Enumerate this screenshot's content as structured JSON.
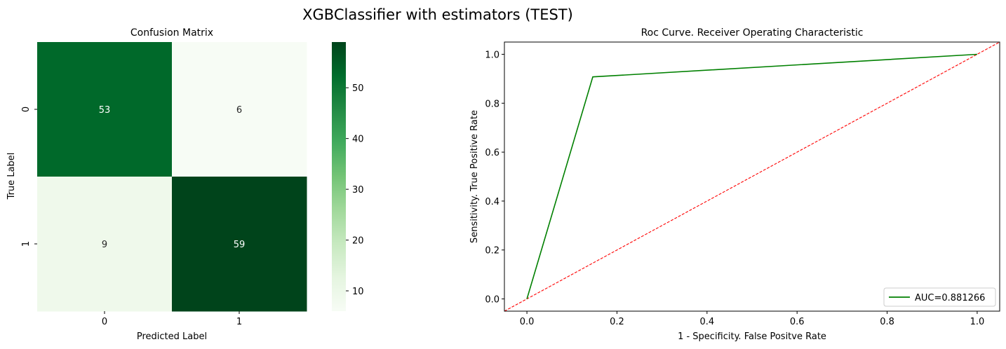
{
  "figure": {
    "suptitle": "XGBClassifier with estimators (TEST)"
  },
  "chart_data": [
    {
      "type": "heatmap",
      "title": "Confusion Matrix",
      "xlabel": "Predicted Label",
      "ylabel": "True Label",
      "x_categories": [
        "0",
        "1"
      ],
      "y_categories": [
        "0",
        "1"
      ],
      "matrix": [
        [
          53,
          6
        ],
        [
          9,
          59
        ]
      ],
      "annotations": [
        [
          "53",
          "6"
        ],
        [
          "9",
          "59"
        ]
      ],
      "colormap": "Greens",
      "vmin": 6,
      "vmax": 59,
      "colorbar_ticks": [
        10,
        20,
        30,
        40,
        50
      ],
      "colorbar_tick_labels": [
        "10",
        "20",
        "30",
        "40",
        "50"
      ]
    },
    {
      "type": "line",
      "title": "Roc Curve. Receiver Operating Characteristic",
      "xlabel": "1 - Specificity. False Positve Rate",
      "ylabel": "Sensitivity. True Positive Rate",
      "xlim": [
        -0.05,
        1.05
      ],
      "ylim": [
        -0.05,
        1.05
      ],
      "xticks": [
        0.0,
        0.2,
        0.4,
        0.6,
        0.8,
        1.0
      ],
      "xtick_labels": [
        "0.0",
        "0.2",
        "0.4",
        "0.6",
        "0.8",
        "1.0"
      ],
      "yticks": [
        0.0,
        0.2,
        0.4,
        0.6,
        0.8,
        1.0
      ],
      "ytick_labels": [
        "0.0",
        "0.2",
        "0.4",
        "0.6",
        "0.8",
        "1.0"
      ],
      "grid": false,
      "legend_position": "lower-right",
      "series": [
        {
          "name": "AUC=0.881266",
          "x": [
            0.0,
            0.1463,
            1.0
          ],
          "y": [
            0.0,
            0.9077,
            1.0
          ],
          "color": "#008000",
          "style": "solid"
        },
        {
          "x": [
            -0.05,
            1.05
          ],
          "y": [
            -0.05,
            1.05
          ],
          "color": "#ff0000",
          "style": "dashed"
        }
      ]
    }
  ]
}
